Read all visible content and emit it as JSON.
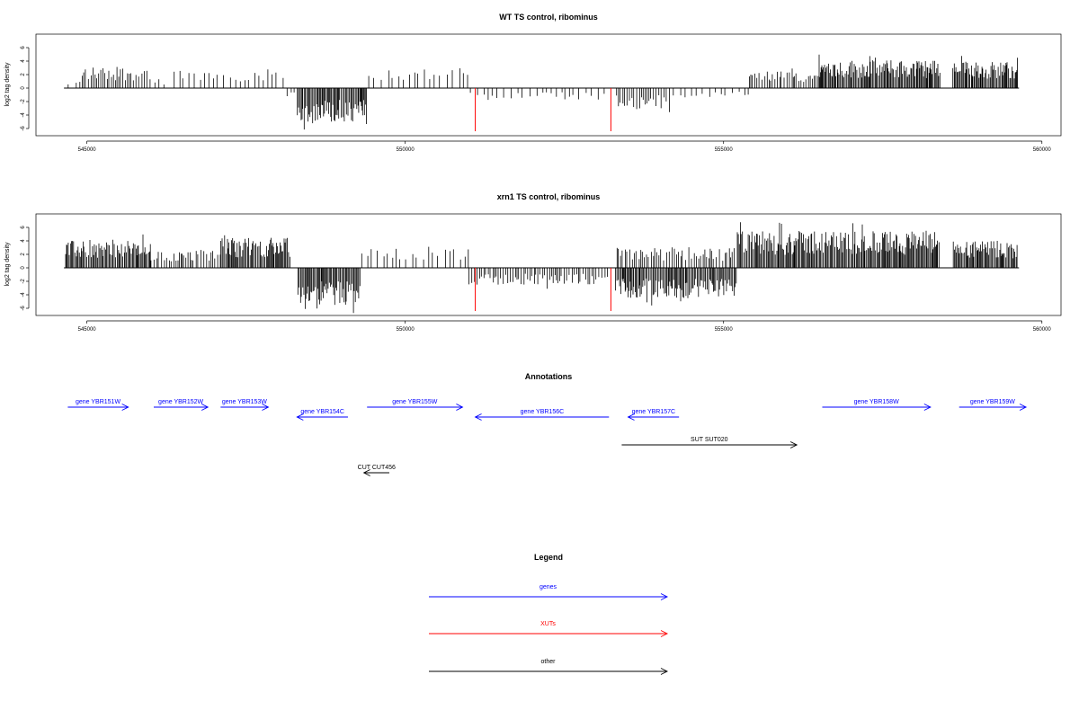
{
  "chart_data": [
    {
      "type": "bar",
      "title": "WT TS control, ribominus",
      "ylabel": "log2 tag density",
      "xlim": [
        544200,
        560300
      ],
      "ylim": [
        -7,
        7.5
      ],
      "x_ticks": [
        545000,
        550000,
        555000,
        560000
      ],
      "y_ticks": [
        -6,
        -4,
        -2,
        0,
        2,
        4,
        6
      ],
      "red_marks": [
        {
          "x": 551100,
          "y": -6.4
        },
        {
          "x": 553230,
          "y": -6.4
        }
      ],
      "density_profile": {
        "description_range": [
          544640,
          559640
        ],
        "segments": [
          {
            "x": [
              544650,
              544900
            ],
            "sign": "pos",
            "amp": 1.0,
            "density": "sparse"
          },
          {
            "x": [
              544900,
              546000
            ],
            "sign": "pos",
            "amp": 3.2,
            "density": "medium"
          },
          {
            "x": [
              546000,
              546300
            ],
            "sign": "pos",
            "amp": 1.5,
            "density": "sparse"
          },
          {
            "x": [
              546300,
              548100
            ],
            "sign": "pos",
            "amp": 2.8,
            "density": "sparse"
          },
          {
            "x": [
              548100,
              548300
            ],
            "sign": "neg",
            "amp": 1.5,
            "density": "sparse"
          },
          {
            "x": [
              548300,
              549400
            ],
            "sign": "neg",
            "amp": 5.0,
            "density": "dense"
          },
          {
            "x": [
              549400,
              551000
            ],
            "sign": "pos",
            "amp": 3.0,
            "density": "sparse"
          },
          {
            "x": [
              551000,
              553200
            ],
            "sign": "neg",
            "amp": 1.8,
            "density": "sparse"
          },
          {
            "x": [
              553300,
              554200
            ],
            "sign": "neg",
            "amp": 3.0,
            "density": "medium"
          },
          {
            "x": [
              554200,
              555400
            ],
            "sign": "neg",
            "amp": 1.4,
            "density": "sparse"
          },
          {
            "x": [
              555400,
              556500
            ],
            "sign": "pos",
            "amp": 2.5,
            "density": "medium"
          },
          {
            "x": [
              556500,
              558400
            ],
            "sign": "pos",
            "amp": 4.2,
            "density": "dense"
          },
          {
            "x": [
              558600,
              559620
            ],
            "sign": "pos",
            "amp": 4.0,
            "density": "dense"
          }
        ]
      }
    },
    {
      "type": "bar",
      "title": "xrn1 TS control, ribominus",
      "ylabel": "log2 tag density",
      "xlim": [
        544200,
        560300
      ],
      "ylim": [
        -7,
        7.5
      ],
      "x_ticks": [
        545000,
        550000,
        555000,
        560000
      ],
      "y_ticks": [
        -6,
        -4,
        -2,
        0,
        2,
        4,
        6
      ],
      "red_marks": [
        {
          "x": 551100,
          "y": -6.4
        },
        {
          "x": 553230,
          "y": -6.4
        }
      ],
      "density_profile": {
        "segments": [
          {
            "x": [
              544650,
              546000
            ],
            "sign": "pos",
            "amp": 4.0,
            "density": "dense"
          },
          {
            "x": [
              546000,
              547100
            ],
            "sign": "pos",
            "amp": 2.5,
            "density": "medium"
          },
          {
            "x": [
              547100,
              548200
            ],
            "sign": "pos",
            "amp": 4.5,
            "density": "dense"
          },
          {
            "x": [
              548300,
              549300
            ],
            "sign": "neg",
            "amp": 5.5,
            "density": "dense"
          },
          {
            "x": [
              549300,
              551000
            ],
            "sign": "pos",
            "amp": 3.0,
            "density": "sparse"
          },
          {
            "x": [
              551000,
              553200
            ],
            "sign": "neg",
            "amp": 2.5,
            "density": "medium"
          },
          {
            "x": [
              553300,
              555200
            ],
            "sign": "neg",
            "amp": 4.5,
            "density": "dense"
          },
          {
            "x": [
              553300,
              555200
            ],
            "sign": "pos",
            "amp": 3.0,
            "density": "medium"
          },
          {
            "x": [
              555200,
              558400
            ],
            "sign": "pos",
            "amp": 5.5,
            "density": "dense"
          },
          {
            "x": [
              558600,
              559620
            ],
            "sign": "pos",
            "amp": 4.0,
            "density": "dense"
          }
        ]
      }
    }
  ],
  "annotations": {
    "title": "Annotations",
    "items": [
      {
        "label": "gene YBR151W",
        "start": 544700,
        "end": 545650,
        "strand": "+",
        "row": 0,
        "type": "gene"
      },
      {
        "label": "gene YBR152W",
        "start": 546050,
        "end": 546900,
        "strand": "+",
        "row": 0,
        "type": "gene"
      },
      {
        "label": "gene YBR153W",
        "start": 547100,
        "end": 547850,
        "strand": "+",
        "row": 0,
        "type": "gene"
      },
      {
        "label": "gene YBR154C",
        "start": 548300,
        "end": 549100,
        "strand": "-",
        "row": 1,
        "type": "gene"
      },
      {
        "label": "gene YBR155W",
        "start": 549400,
        "end": 550900,
        "strand": "+",
        "row": 0,
        "type": "gene"
      },
      {
        "label": "gene YBR156C",
        "start": 551100,
        "end": 553200,
        "strand": "-",
        "row": 1,
        "type": "gene"
      },
      {
        "label": "gene YBR157C",
        "start": 553500,
        "end": 554300,
        "strand": "-",
        "row": 1,
        "type": "gene"
      },
      {
        "label": "gene YBR158W",
        "start": 556550,
        "end": 558250,
        "strand": "+",
        "row": 0,
        "type": "gene"
      },
      {
        "label": "gene YBR159W",
        "start": 558700,
        "end": 559750,
        "strand": "+",
        "row": 0,
        "type": "gene"
      },
      {
        "label": "SUT SUT020",
        "start": 553400,
        "end": 556150,
        "strand": "+",
        "row": 2,
        "type": "other"
      },
      {
        "label": "CUT CUT456",
        "start": 549350,
        "end": 549750,
        "strand": "-",
        "row": 3,
        "type": "other"
      }
    ]
  },
  "legend": {
    "title": "Legend",
    "items": [
      {
        "label": "genes",
        "color": "#0000ff"
      },
      {
        "label": "XUTs",
        "color": "#ff0000"
      },
      {
        "label": "other",
        "color": "#000000"
      }
    ]
  },
  "colors": {
    "gene": "#0000ff",
    "xut": "#ff0000",
    "other": "#000000",
    "bars": "#000000",
    "red_mark": "#ff0000"
  }
}
